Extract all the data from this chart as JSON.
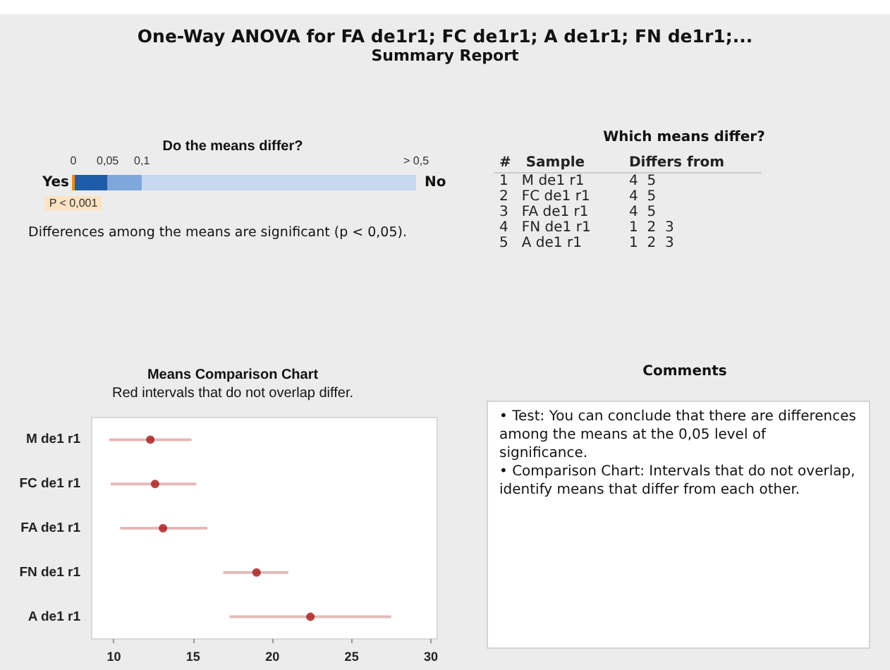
{
  "chart_data": [
    {
      "type": "other",
      "title": "One-Way ANOVA for FA de1r1; FC de1r1; A de1r1; FN de1r1;...",
      "subtitle": "Summary Report"
    },
    {
      "type": "bar",
      "title": "Do the means differ?",
      "orientation": "horizontal",
      "stacked": true,
      "categories": [
        null
      ],
      "series": [
        {
          "color": "#1f5ca8",
          "values": [
            0.05
          ]
        },
        {
          "color": "#7fa7da",
          "values": [
            0.05
          ]
        },
        {
          "color": "#c6d8f0",
          "values": [
            0.4
          ]
        }
      ],
      "xlim": [
        0,
        0.5
      ],
      "xticks": [
        {
          "value": 0,
          "label": "0"
        },
        {
          "value": 0.05,
          "label": "0,05"
        },
        {
          "value": 0.1,
          "label": "0,1"
        },
        {
          "value": 0.5,
          "label": "> 0,5"
        }
      ],
      "ref_lines": [
        {
          "axis": "x",
          "value": 0.001,
          "label": "P < 0,001",
          "color": "#f08c1e"
        }
      ],
      "annotations": [
        "Yes",
        "No",
        "Differences among the means are significant (p < 0,05)."
      ]
    },
    {
      "type": "other",
      "title": "Which means differ?",
      "annotations": [
        "#",
        "Sample",
        "Differs from",
        "1",
        "M de1 r1",
        "4  5",
        "2",
        "FC de1 r1",
        "4  5",
        "3",
        "FA de1 r1",
        "4  5",
        "4",
        "FN de1 r1",
        "1  2  3",
        "5",
        "A de1 r1",
        "1  2  3"
      ]
    },
    {
      "type": "scatter",
      "title": "Means Comparison Chart",
      "subtitle": "Red intervals that do not overlap differ.",
      "orientation": "horizontal",
      "categories": [
        "M de1 r1",
        "FC de1 r1",
        "FA de1 r1",
        "FN de1 r1",
        "A de1 r1"
      ],
      "series": [
        {
          "color": "#a51616",
          "values": [
            12.3,
            12.6,
            13.1,
            19.0,
            22.4
          ],
          "errors": [
            [
              9.7,
              14.9
            ],
            [
              9.8,
              15.2
            ],
            [
              10.4,
              15.9
            ],
            [
              16.9,
              21.0
            ],
            [
              17.3,
              27.5
            ]
          ]
        }
      ],
      "xlim": [
        8.6,
        30.4
      ],
      "xticks": [
        10,
        15,
        20,
        25,
        30
      ],
      "grid": false,
      "marker": "circle"
    },
    {
      "type": "other",
      "title": "Comments",
      "annotations": [
        "• Test: You can conclude that there are differences among the means at the 0,05 level of significance.",
        "• Comparison Chart: Intervals that do not overlap, identify means that differ from each other."
      ]
    }
  ]
}
